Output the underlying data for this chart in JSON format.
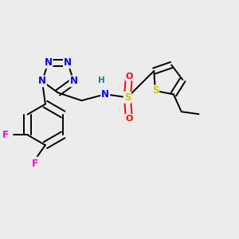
{
  "background_color": "#ececec",
  "figsize": [
    3.0,
    3.0
  ],
  "dpi": 100,
  "atom_colors": {
    "N": "#0000ee",
    "S": "#c8c800",
    "O": "#ff0000",
    "F": "#ff00cc",
    "H": "#008888",
    "C": "#000000"
  },
  "bond_color": "#000000",
  "bond_width": 1.4,
  "font_size_atom": 8.5
}
